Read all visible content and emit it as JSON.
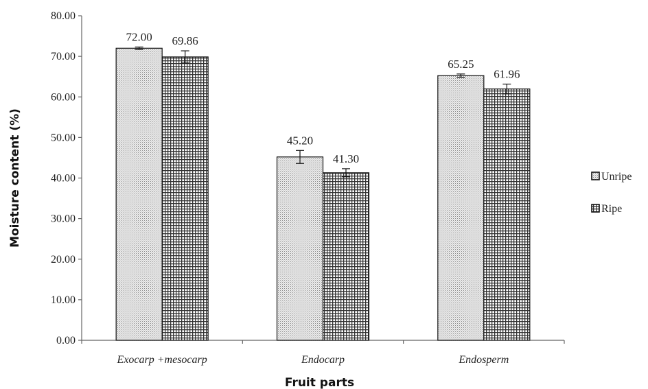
{
  "chart_data": {
    "type": "bar",
    "categories": [
      "Exocarp +mesocarp",
      "Endocarp",
      "Endosperm"
    ],
    "series": [
      {
        "name": "Unripe",
        "values": [
          72.0,
          45.2,
          65.25
        ],
        "errors": [
          0.3,
          1.6,
          0.4
        ],
        "labels": [
          "72.00",
          "45.20",
          "65.25"
        ]
      },
      {
        "name": "Ripe",
        "values": [
          69.86,
          41.3,
          61.96
        ],
        "errors": [
          1.5,
          1.0,
          1.2
        ],
        "labels": [
          "69.86",
          "41.30",
          "61.96"
        ]
      }
    ],
    "xlabel": "Fruit parts",
    "ylabel": "Moisture content (%)",
    "ylim": [
      0,
      80
    ],
    "yticks": [
      "0.00",
      "10.00",
      "20.00",
      "30.00",
      "40.00",
      "50.00",
      "60.00",
      "70.00",
      "80.00"
    ],
    "grid": false,
    "legend_position": "right"
  }
}
